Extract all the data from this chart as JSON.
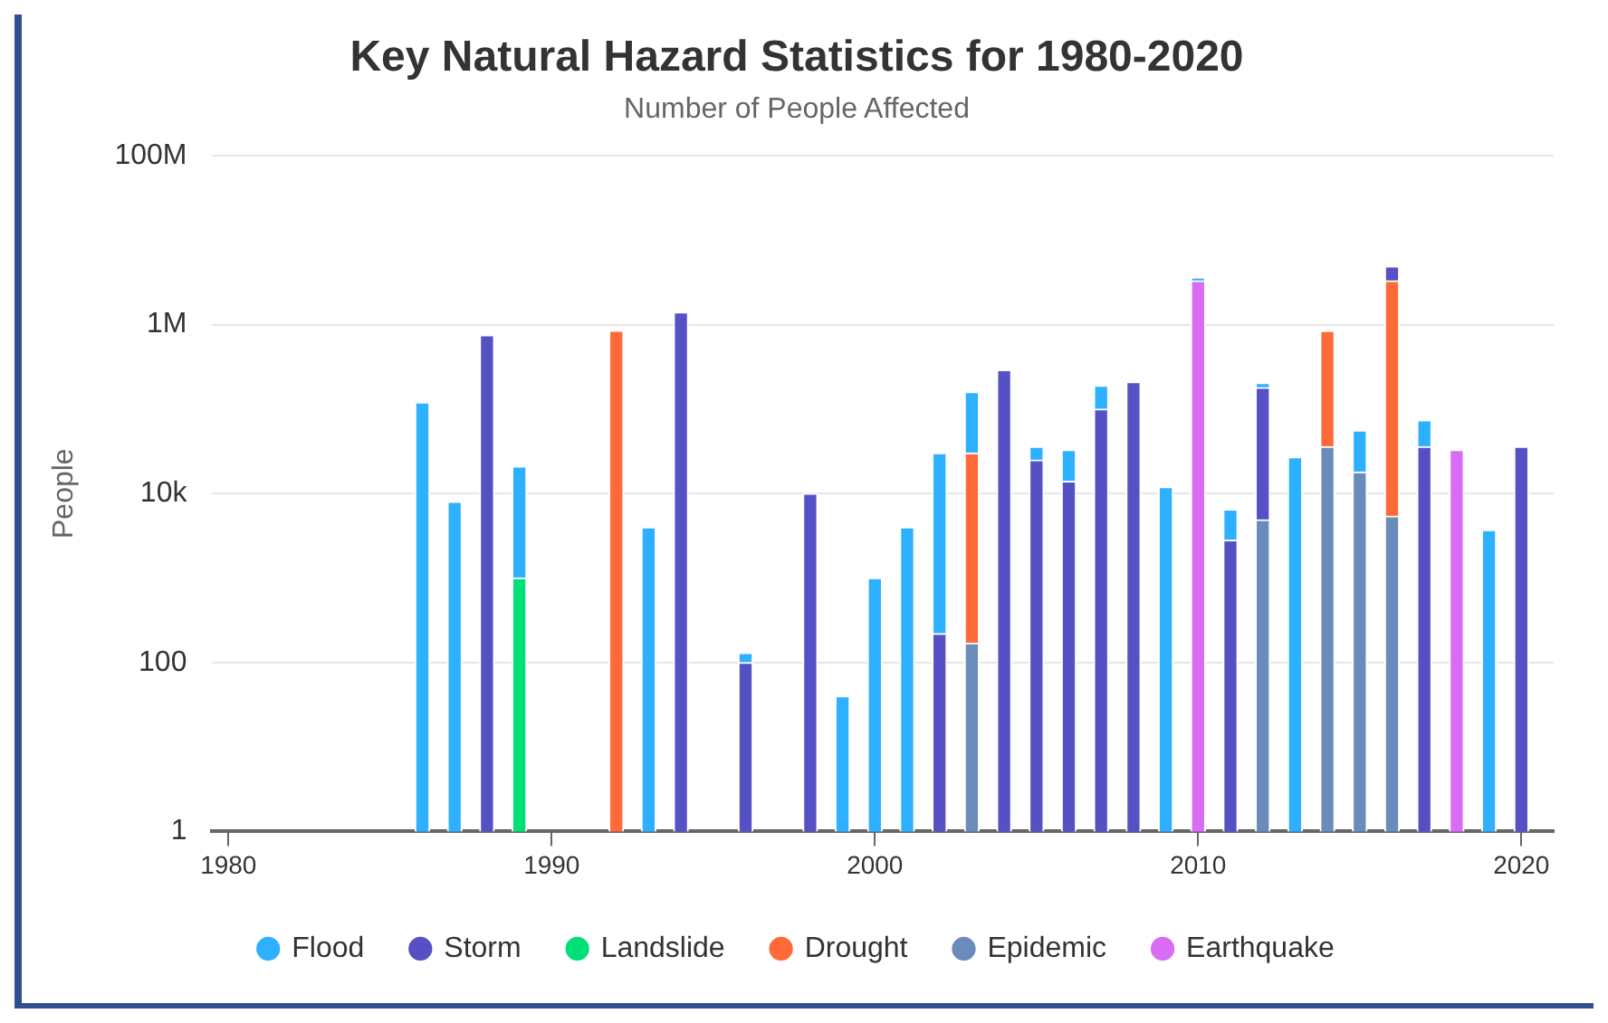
{
  "chart_data": {
    "type": "bar",
    "title": "Key Natural Hazard Statistics for 1980-2020",
    "subtitle": "Number of People Affected",
    "ylabel": "People",
    "stacked": true,
    "log": true,
    "grid": "y",
    "legend": "bottom",
    "marker": "circle",
    "x": [
      1986,
      1987,
      1988,
      1989,
      1990,
      1991,
      1992,
      1993,
      1994,
      1995,
      1996,
      1997,
      1998,
      1999,
      2000,
      2001,
      2002,
      2003,
      2004,
      2005,
      2006,
      2007,
      2008,
      2009,
      2010,
      2011,
      2012,
      2013,
      2014,
      2015,
      2016,
      2017,
      2018,
      2019,
      2020
    ],
    "xlim": [
      1979.5,
      2021
    ],
    "xticks": [
      1980,
      1990,
      2000,
      2010,
      2020
    ],
    "ylim": [
      1,
      100000000
    ],
    "yticks": [
      1,
      100,
      {
        "value": 10000,
        "label": "10k"
      },
      {
        "value": 1000000,
        "label": "1M"
      },
      {
        "value": 100000000,
        "label": "100M"
      }
    ],
    "series": [
      {
        "name": "Earthquake",
        "color": "#d96cf5",
        "values": [
          null,
          null,
          null,
          null,
          null,
          null,
          null,
          null,
          null,
          null,
          null,
          null,
          null,
          null,
          null,
          null,
          null,
          null,
          null,
          null,
          null,
          null,
          null,
          null,
          3300000,
          null,
          null,
          null,
          null,
          null,
          null,
          null,
          33000,
          null,
          null
        ]
      },
      {
        "name": "Epidemic",
        "color": "#6a8cbb",
        "values": [
          null,
          null,
          null,
          null,
          null,
          null,
          null,
          null,
          null,
          null,
          null,
          null,
          null,
          null,
          null,
          null,
          null,
          170,
          null,
          null,
          null,
          null,
          null,
          null,
          null,
          null,
          4900,
          null,
          36000,
          18000,
          5400,
          null,
          null,
          null,
          null
        ]
      },
      {
        "name": "Drought",
        "color": "#ff6a38",
        "values": [
          null,
          null,
          null,
          null,
          null,
          null,
          850000,
          null,
          null,
          null,
          null,
          null,
          null,
          null,
          null,
          null,
          null,
          30000,
          null,
          null,
          null,
          null,
          null,
          null,
          null,
          null,
          null,
          null,
          810000,
          null,
          3300000,
          null,
          null,
          null,
          null
        ]
      },
      {
        "name": "Landslide",
        "color": "#00e077",
        "values": [
          null,
          null,
          null,
          1000,
          null,
          null,
          null,
          null,
          null,
          null,
          null,
          null,
          null,
          null,
          null,
          null,
          null,
          null,
          null,
          null,
          null,
          null,
          null,
          null,
          null,
          null,
          null,
          null,
          null,
          null,
          null,
          null,
          null,
          null,
          null
        ]
      },
      {
        "name": "Storm",
        "color": "#5551c4",
        "values": [
          null,
          null,
          750000,
          null,
          null,
          null,
          null,
          null,
          1400000,
          null,
          100,
          null,
          10000,
          null,
          null,
          null,
          220,
          null,
          290000,
          25000,
          14000,
          100000,
          210000,
          null,
          null,
          2800,
          175000,
          null,
          null,
          null,
          1600000,
          36000,
          null,
          null,
          36000
        ]
      },
      {
        "name": "Flood",
        "color": "#2db0ff",
        "values": [
          120000,
          8000,
          null,
          20000,
          null,
          null,
          null,
          4000,
          null,
          null,
          30,
          null,
          null,
          40,
          1000,
          4000,
          30000,
          130000,
          null,
          11000,
          19000,
          90000,
          null,
          12000,
          300000,
          3700,
          25000,
          27000,
          null,
          38000,
          null,
          38000,
          null,
          3700,
          null
        ]
      }
    ]
  }
}
